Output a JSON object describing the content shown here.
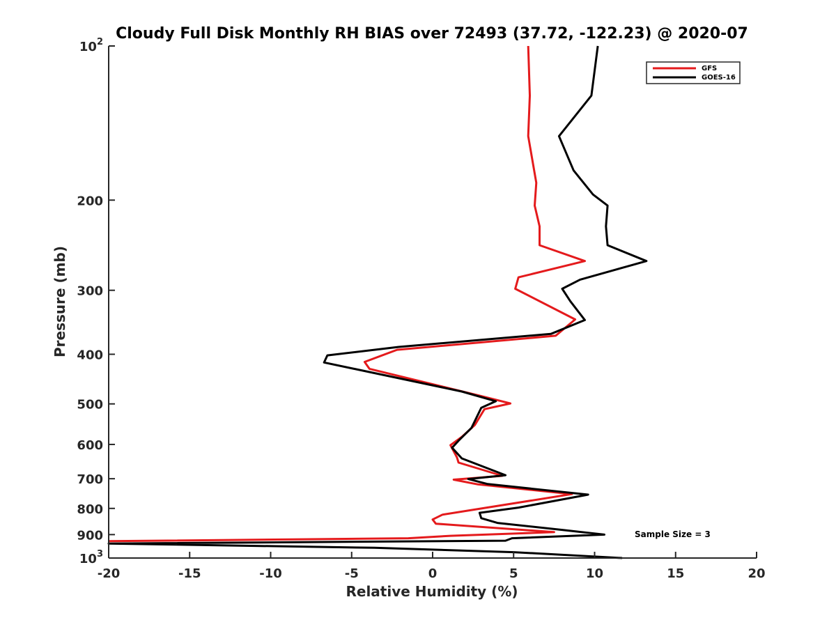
{
  "chart_data": {
    "type": "line",
    "title": "Cloudy Full Disk Monthly RH BIAS over 72493 (37.72, -122.23) @ 2020-07",
    "xlabel": "Relative Humidity (%)",
    "ylabel": "Pressure (mb)",
    "xlim": [
      -20,
      20
    ],
    "ylim": [
      100,
      1000
    ],
    "yscale": "log",
    "y_reversed": true,
    "grid": false,
    "legend_position": "top-right",
    "x_ticks": [
      {
        "value": -20,
        "label": "-20"
      },
      {
        "value": -15,
        "label": "-15"
      },
      {
        "value": -10,
        "label": "-10"
      },
      {
        "value": -5,
        "label": "-5"
      },
      {
        "value": 0,
        "label": "0"
      },
      {
        "value": 5,
        "label": "5"
      },
      {
        "value": 10,
        "label": "10"
      },
      {
        "value": 15,
        "label": "15"
      },
      {
        "value": 20,
        "label": "20"
      }
    ],
    "y_ticks": [
      {
        "value": 100,
        "base": "10",
        "exp": "2"
      },
      {
        "value": 200,
        "base": "200",
        "exp": ""
      },
      {
        "value": 300,
        "base": "300",
        "exp": ""
      },
      {
        "value": 400,
        "base": "400",
        "exp": ""
      },
      {
        "value": 500,
        "base": "500",
        "exp": ""
      },
      {
        "value": 600,
        "base": "600",
        "exp": ""
      },
      {
        "value": 700,
        "base": "700",
        "exp": ""
      },
      {
        "value": 800,
        "base": "800",
        "exp": ""
      },
      {
        "value": 900,
        "base": "900",
        "exp": ""
      },
      {
        "value": 1000,
        "base": "10",
        "exp": "3"
      }
    ],
    "series": [
      {
        "name": "GFS",
        "color": "#e41a1c",
        "points": [
          [
            5.9,
            100
          ],
          [
            6.0,
            125
          ],
          [
            5.9,
            150
          ],
          [
            6.4,
            185
          ],
          [
            6.3,
            205
          ],
          [
            6.6,
            225
          ],
          [
            6.6,
            245
          ],
          [
            9.4,
            263
          ],
          [
            5.3,
            283
          ],
          [
            5.1,
            298
          ],
          [
            8.8,
            342
          ],
          [
            7.6,
            368
          ],
          [
            -2.2,
            392
          ],
          [
            -4.2,
            414
          ],
          [
            -3.9,
            427
          ],
          [
            2.9,
            482
          ],
          [
            4.8,
            499
          ],
          [
            3.2,
            512
          ],
          [
            2.6,
            550
          ],
          [
            1.8,
            580
          ],
          [
            1.1,
            602
          ],
          [
            1.5,
            636
          ],
          [
            1.6,
            651
          ],
          [
            4.3,
            691
          ],
          [
            1.3,
            703
          ],
          [
            2.8,
            718
          ],
          [
            8.6,
            750
          ],
          [
            0.6,
            823
          ],
          [
            0.0,
            841
          ],
          [
            0.2,
            857
          ],
          [
            7.5,
            890
          ],
          [
            1.1,
            905
          ],
          [
            -1.5,
            915
          ],
          [
            -20.0,
            927
          ]
        ]
      },
      {
        "name": "GOES-16",
        "color": "#000000",
        "points": [
          [
            10.2,
            100
          ],
          [
            9.8,
            125
          ],
          [
            7.8,
            150
          ],
          [
            8.7,
            175
          ],
          [
            9.9,
            195
          ],
          [
            10.8,
            205
          ],
          [
            10.7,
            225
          ],
          [
            10.8,
            245
          ],
          [
            13.2,
            263
          ],
          [
            9.1,
            286
          ],
          [
            8.0,
            298
          ],
          [
            8.5,
            315
          ],
          [
            9.4,
            343
          ],
          [
            7.3,
            365
          ],
          [
            -2.1,
            387
          ],
          [
            -6.5,
            402
          ],
          [
            -6.7,
            415
          ],
          [
            1.8,
            473
          ],
          [
            3.9,
            494
          ],
          [
            3.0,
            509
          ],
          [
            2.4,
            557
          ],
          [
            1.6,
            590
          ],
          [
            1.2,
            609
          ],
          [
            1.8,
            639
          ],
          [
            4.5,
            689
          ],
          [
            2.2,
            701
          ],
          [
            3.4,
            717
          ],
          [
            9.6,
            752
          ],
          [
            5.3,
            797
          ],
          [
            2.9,
            816
          ],
          [
            3.0,
            836
          ],
          [
            4.0,
            854
          ],
          [
            8.1,
            882
          ],
          [
            10.6,
            900
          ],
          [
            4.9,
            915
          ],
          [
            4.5,
            925
          ],
          [
            -20.0,
            937
          ],
          [
            -3.6,
            955
          ],
          [
            5.0,
            974
          ],
          [
            11.7,
            1000
          ]
        ]
      }
    ],
    "annotations": [
      {
        "text": "Sample Size = 3"
      }
    ]
  }
}
